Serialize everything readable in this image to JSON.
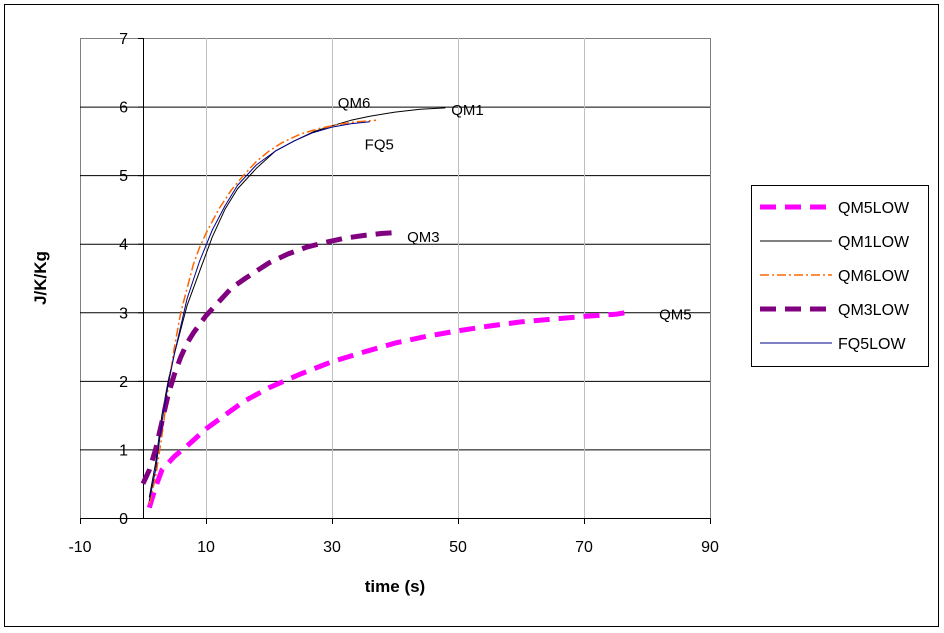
{
  "chart_data": {
    "type": "line",
    "title": "",
    "xlabel": "time (s)",
    "ylabel": "J/K/Kg",
    "xlim": [
      -10,
      90
    ],
    "ylim": [
      0,
      7
    ],
    "xticks": [
      -10,
      10,
      30,
      50,
      70,
      90
    ],
    "yticks": [
      0,
      1,
      2,
      3,
      4,
      5,
      6,
      7
    ],
    "grid": "horizontal",
    "legend_position": "right",
    "series": [
      {
        "name": "QM5LOW",
        "color": "#ff00ff",
        "style": "dash-thick",
        "x": [
          1,
          2,
          3,
          5,
          7,
          10,
          13,
          16,
          20,
          25,
          30,
          35,
          40,
          45,
          50,
          55,
          60,
          65,
          70,
          75,
          77
        ],
        "y": [
          0.15,
          0.45,
          0.7,
          0.9,
          1.05,
          1.3,
          1.5,
          1.7,
          1.9,
          2.1,
          2.28,
          2.42,
          2.55,
          2.65,
          2.73,
          2.8,
          2.86,
          2.9,
          2.94,
          2.97,
          3.0
        ]
      },
      {
        "name": "QM1LOW",
        "color": "#000000",
        "style": "thin",
        "x": [
          1,
          2,
          3,
          4,
          5,
          7,
          9,
          11,
          13,
          15,
          18,
          21,
          24,
          27,
          30,
          33,
          36,
          40,
          44,
          48
        ],
        "y": [
          0.3,
          0.8,
          1.5,
          2.0,
          2.4,
          3.1,
          3.6,
          4.1,
          4.5,
          4.8,
          5.1,
          5.35,
          5.5,
          5.63,
          5.72,
          5.8,
          5.86,
          5.92,
          5.96,
          5.98
        ]
      },
      {
        "name": "QM6LOW",
        "color": "#ff6600",
        "style": "dashdot",
        "x": [
          1,
          2,
          3,
          4,
          5,
          6,
          7,
          8,
          9,
          10,
          12,
          14,
          16,
          18,
          20,
          22,
          25,
          28,
          31,
          34,
          37
        ],
        "y": [
          0.2,
          0.6,
          1.2,
          1.9,
          2.5,
          3.0,
          3.35,
          3.7,
          3.95,
          4.15,
          4.5,
          4.78,
          5.0,
          5.2,
          5.35,
          5.47,
          5.6,
          5.68,
          5.74,
          5.78,
          5.8
        ]
      },
      {
        "name": "QM3LOW",
        "color": "#800080",
        "style": "dash-thick",
        "x": [
          0,
          1,
          2,
          3,
          4,
          5,
          6,
          7,
          8,
          10,
          12,
          14,
          16,
          18,
          20,
          23,
          26,
          29,
          32,
          35,
          38,
          40
        ],
        "y": [
          0.5,
          0.7,
          1.0,
          1.4,
          1.8,
          2.1,
          2.35,
          2.55,
          2.7,
          2.95,
          3.15,
          3.35,
          3.48,
          3.6,
          3.72,
          3.85,
          3.95,
          4.02,
          4.08,
          4.12,
          4.15,
          4.16
        ]
      },
      {
        "name": "FQ5LOW",
        "color": "#00008b",
        "style": "thin",
        "x": [
          1,
          2,
          3,
          4,
          5,
          7,
          9,
          11,
          13,
          15,
          18,
          21,
          24,
          27,
          30,
          33,
          36
        ],
        "y": [
          0.25,
          0.7,
          1.4,
          1.95,
          2.4,
          3.2,
          3.75,
          4.2,
          4.55,
          4.85,
          5.15,
          5.35,
          5.5,
          5.62,
          5.7,
          5.75,
          5.78
        ]
      }
    ],
    "annotations": [
      {
        "text": "QM6",
        "x": 33.5,
        "y": 6.05
      },
      {
        "text": "QM1",
        "x": 51.5,
        "y": 5.95
      },
      {
        "text": "FQ5",
        "x": 37.5,
        "y": 5.45
      },
      {
        "text": "QM3",
        "x": 44.5,
        "y": 4.1
      },
      {
        "text": "QM5",
        "x": 84.5,
        "y": 2.97
      }
    ]
  }
}
